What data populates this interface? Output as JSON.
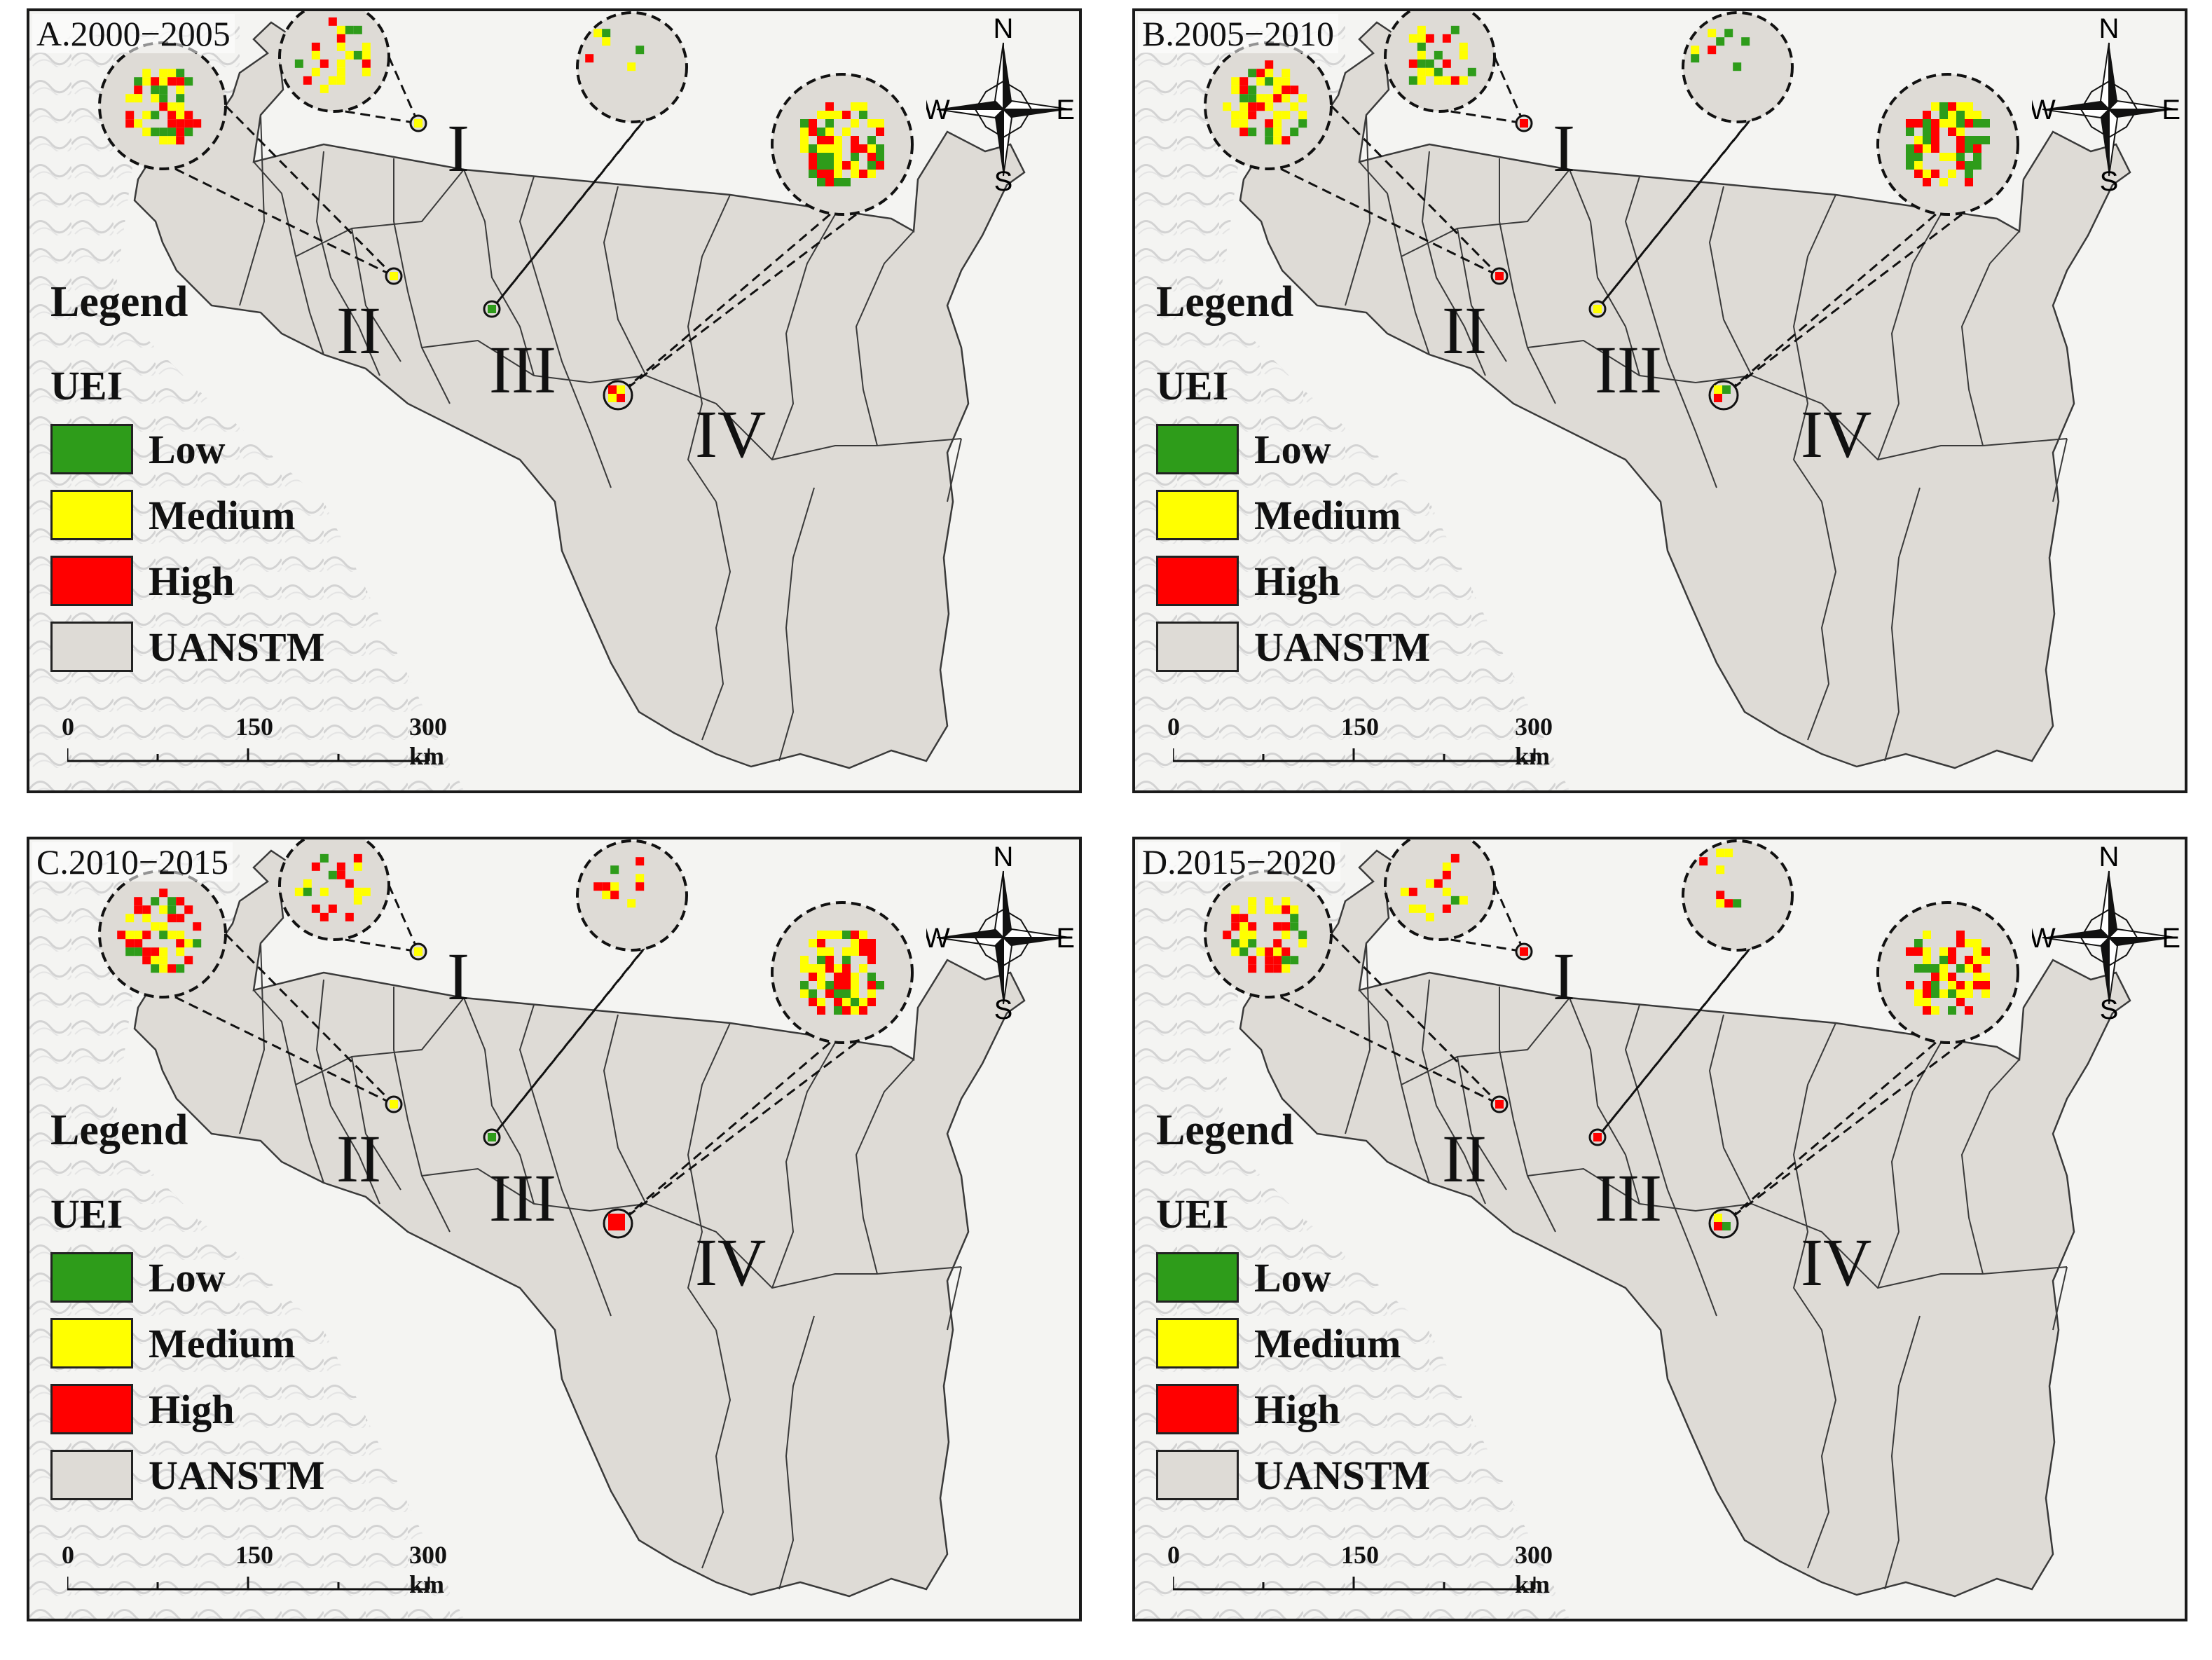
{
  "panels": [
    {
      "title": "A.2000−2005"
    },
    {
      "title": "B.2005−2010"
    },
    {
      "title": "C.2010−2015"
    },
    {
      "title": "D.2015−2020"
    }
  ],
  "legend": {
    "title": "Legend",
    "subtitle": "UEI",
    "items": [
      {
        "label": "Low",
        "color": "#2e9c1a"
      },
      {
        "label": "Medium",
        "color": "#ffff00"
      },
      {
        "label": "High",
        "color": "#ff0000"
      },
      {
        "label": "UANSTM",
        "color": "#dedbd6"
      }
    ]
  },
  "scale": {
    "ticks": [
      "0",
      "150",
      "300 km"
    ]
  },
  "compass": {
    "n": "N",
    "s": "S",
    "e": "E",
    "w": "W"
  },
  "regions": [
    "I",
    "II",
    "III",
    "IV"
  ],
  "colors": {
    "land": "#dedbd6",
    "outline": "#3a3a3a",
    "background": "#f4f4f2"
  }
}
